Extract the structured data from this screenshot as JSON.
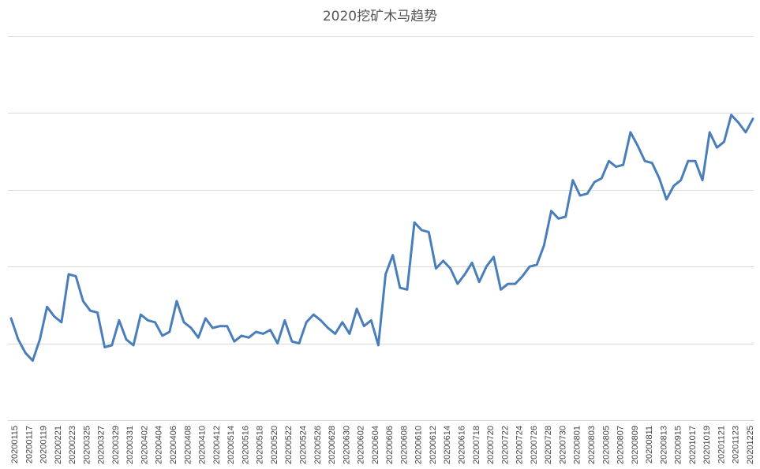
{
  "chart_data": {
    "type": "line",
    "title": "2020挖矿木马趋势",
    "xlabel": "",
    "ylabel": "",
    "y_axis_labels_visible": false,
    "ylim": [
      0,
      100
    ],
    "grid": true,
    "legend": "none",
    "line_color": "#4a7ebb",
    "tick_labels": [
      "20200115",
      "20200117",
      "20200119",
      "20200221",
      "20200223",
      "20200325",
      "20200327",
      "20200329",
      "20200331",
      "20200402",
      "20200404",
      "20200406",
      "20200408",
      "20200410",
      "20200412",
      "20200514",
      "20200516",
      "20200518",
      "20200520",
      "20200522",
      "20200524",
      "20200526",
      "20200628",
      "20200630",
      "20200602",
      "20200604",
      "20200606",
      "20200608",
      "20200610",
      "20200612",
      "20200614",
      "20200616",
      "20200718",
      "20200720",
      "20200722",
      "20200724",
      "20200726",
      "20200728",
      "20200730",
      "20200801",
      "20200803",
      "20200805",
      "20200807",
      "20200809",
      "20200811",
      "20200813",
      "20200915",
      "20201017",
      "20201019",
      "20201121",
      "20201123",
      "20201225"
    ],
    "values": [
      26.5,
      21.0,
      17.5,
      15.5,
      21.0,
      29.5,
      27.0,
      25.5,
      38.0,
      37.5,
      31.0,
      28.5,
      28.0,
      19.0,
      19.5,
      26.0,
      21.0,
      19.5,
      27.5,
      26.0,
      25.5,
      22.0,
      23.0,
      31.0,
      25.5,
      24.0,
      21.5,
      26.5,
      24.0,
      24.5,
      24.5,
      20.5,
      22.0,
      21.5,
      23.0,
      22.5,
      23.5,
      20.0,
      26.0,
      20.5,
      20.0,
      25.5,
      27.5,
      26.0,
      24.0,
      22.5,
      25.5,
      22.5,
      29.0,
      24.5,
      26.0,
      19.5,
      38.0,
      43.0,
      34.5,
      34.0,
      51.5,
      49.5,
      49.0,
      39.5,
      41.5,
      39.5,
      35.5,
      38.0,
      41.0,
      36.0,
      40.0,
      42.5,
      34.0,
      35.5,
      35.5,
      37.5,
      40.0,
      40.5,
      45.5,
      54.5,
      52.5,
      53.0,
      62.5,
      58.5,
      59.0,
      62.0,
      63.0,
      67.5,
      66.0,
      66.5,
      75.0,
      71.5,
      67.5,
      67.0,
      63.0,
      57.5,
      61.0,
      62.5,
      67.5,
      67.5,
      62.5,
      75.0,
      71.0,
      72.5,
      79.5,
      77.5,
      75.0,
      78.5
    ]
  }
}
